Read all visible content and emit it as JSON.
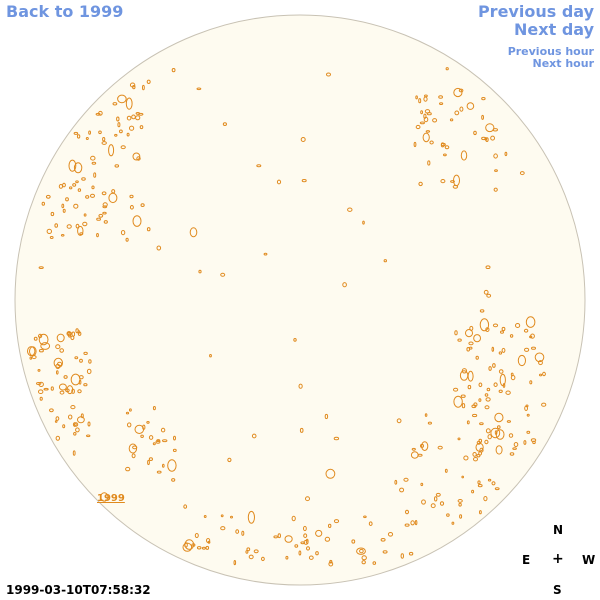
{
  "nav": {
    "back_label": "Back to 1999",
    "previous_day_label": "Previous day",
    "next_day_label": "Next day",
    "previous_hour_label": "Previous hour",
    "next_hour_label": "Next hour"
  },
  "sun": {
    "disk_fill": "#fefbf0",
    "disk_stroke": "#c8c2b4",
    "contour_color": "#e08a1e"
  },
  "overlay": {
    "year_label": "1999"
  },
  "compass": {
    "north": "N",
    "east": "E",
    "west": "W",
    "south": "S",
    "center": "+"
  },
  "timestamp": "1999-03-10T07:58:32",
  "colors": {
    "link": "#6f95e0",
    "contour": "#e08a1e"
  }
}
